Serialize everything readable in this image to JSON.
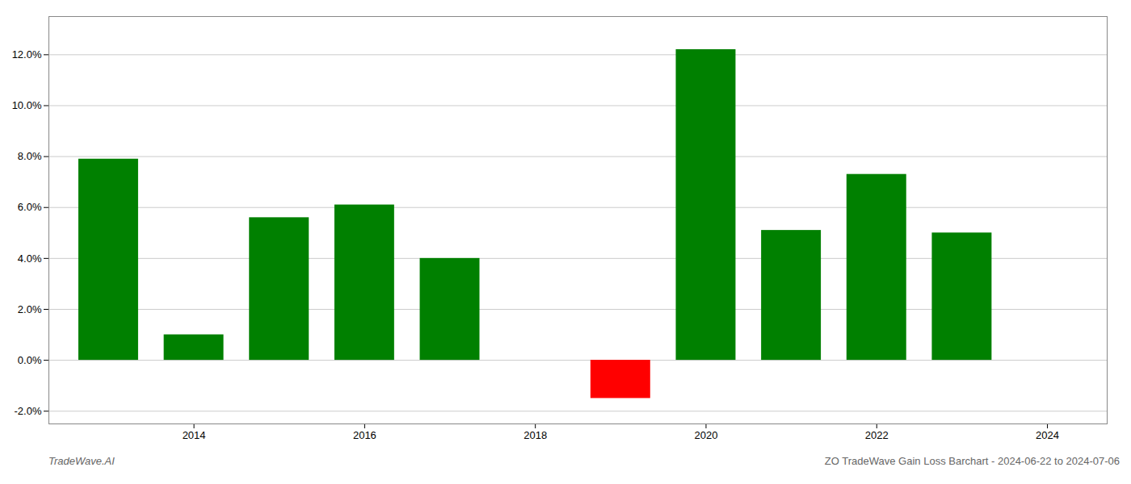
{
  "chart_data": {
    "type": "bar",
    "x": [
      2013,
      2014,
      2015,
      2016,
      2017,
      2019,
      2020,
      2021,
      2022,
      2023
    ],
    "values": [
      0.079,
      0.01,
      0.056,
      0.061,
      0.04,
      -0.015,
      0.122,
      0.051,
      0.073,
      0.05
    ],
    "colors": [
      "#008000",
      "#008000",
      "#008000",
      "#008000",
      "#008000",
      "#ff0000",
      "#008000",
      "#008000",
      "#008000",
      "#008000"
    ],
    "xlim": [
      2012.3,
      2024.7
    ],
    "xticks": [
      2014,
      2016,
      2018,
      2020,
      2022,
      2024
    ],
    "ylim": [
      -0.025,
      0.135
    ],
    "yticks": [
      {
        "value": -0.02,
        "label": "-2.0%"
      },
      {
        "value": 0.0,
        "label": "0.0%"
      },
      {
        "value": 0.02,
        "label": "2.0%"
      },
      {
        "value": 0.04,
        "label": "4.0%"
      },
      {
        "value": 0.06,
        "label": "6.0%"
      },
      {
        "value": 0.08,
        "label": "8.0%"
      },
      {
        "value": 0.1,
        "label": "10.0%"
      },
      {
        "value": 0.12,
        "label": "12.0%"
      }
    ],
    "grid": true,
    "annotations": [
      "TradeWave.AI",
      "ZO TradeWave Gain Loss Barchart - 2024-06-22 to 2024-07-06"
    ]
  }
}
